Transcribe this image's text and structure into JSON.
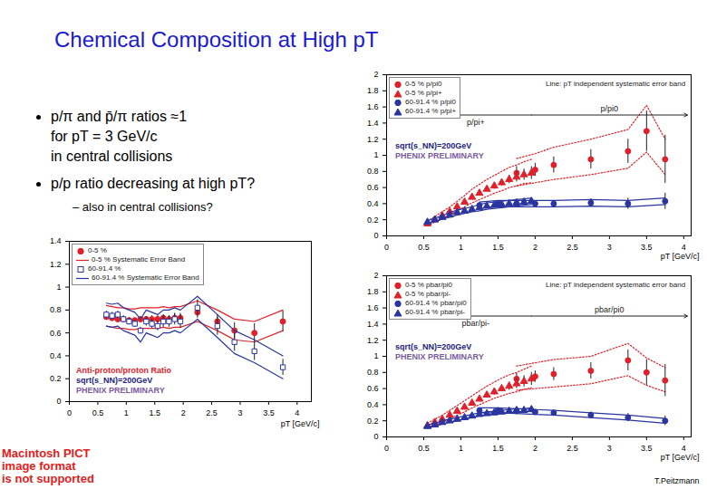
{
  "slide": {
    "title": "Chemical Composition at High pT",
    "bullets": [
      {
        "lines": [
          "p/π and p̄/π ratios ≈1",
          "for pT = 3 GeV/c",
          "in central collisions"
        ]
      },
      {
        "lines": [
          "p/p ratio decreasing at high pT?"
        ],
        "sub": [
          "– also in central collisions?"
        ]
      }
    ],
    "footer_left": [
      "Macintosh PICT",
      "image format",
      "is not supported"
    ],
    "credit": "T.Peitzmann"
  },
  "chart_data": [
    {
      "type": "scatter",
      "x_label": "pT [GeV/c]",
      "xlim": [
        0,
        4.25
      ],
      "xticks": [
        0,
        0.5,
        1,
        1.5,
        2,
        2.5,
        3,
        3.5,
        4
      ],
      "ylim": [
        0,
        1.4
      ],
      "yticks": [
        0,
        0.2,
        0.4,
        0.6,
        0.8,
        1,
        1.2,
        1.4
      ],
      "legend": "top-left",
      "annotations": [
        {
          "text": "Anti-proton/proton Ratio",
          "color": "#e0202a"
        },
        {
          "text": "sqrt(s_NN)=200GeV",
          "color": "#1a237e"
        },
        {
          "text": "PHENIX PRELIMINARY",
          "color": "#7a5aa0"
        }
      ],
      "series": [
        {
          "name": "0-5 %",
          "color": "#e0202a",
          "marker": "circle",
          "band_name": "0-5 % Systematic Error Band",
          "line_style": "solid",
          "x": [
            0.65,
            0.75,
            0.85,
            0.95,
            1.05,
            1.15,
            1.25,
            1.35,
            1.45,
            1.55,
            1.65,
            1.75,
            1.85,
            1.95,
            2.25,
            2.6,
            2.9,
            3.25,
            3.75
          ],
          "values": [
            0.74,
            0.73,
            0.72,
            0.72,
            0.71,
            0.71,
            0.72,
            0.72,
            0.72,
            0.72,
            0.73,
            0.72,
            0.73,
            0.73,
            0.78,
            0.7,
            0.62,
            0.6,
            0.7
          ],
          "errors": [
            0.02,
            0.02,
            0.02,
            0.02,
            0.02,
            0.02,
            0.02,
            0.02,
            0.03,
            0.03,
            0.03,
            0.03,
            0.04,
            0.04,
            0.05,
            0.06,
            0.07,
            0.08,
            0.09
          ],
          "band_low": [
            0.66,
            0.65,
            0.64,
            0.64,
            0.63,
            0.63,
            0.64,
            0.64,
            0.64,
            0.64,
            0.65,
            0.64,
            0.65,
            0.65,
            0.7,
            0.62,
            0.54,
            0.52,
            0.62
          ],
          "band_high": [
            0.84,
            0.83,
            0.82,
            0.82,
            0.81,
            0.81,
            0.82,
            0.82,
            0.82,
            0.82,
            0.83,
            0.82,
            0.83,
            0.83,
            0.88,
            0.8,
            0.72,
            0.7,
            0.8
          ]
        },
        {
          "name": "60-91.4 %",
          "color": "#2a35a0",
          "marker": "square-open",
          "band_name": "60-91.4 % Systematic Error Band",
          "line_style": "solid",
          "x": [
            0.65,
            0.75,
            0.85,
            0.95,
            1.05,
            1.15,
            1.25,
            1.35,
            1.45,
            1.55,
            1.65,
            1.75,
            1.85,
            1.95,
            2.25,
            2.6,
            2.9,
            3.25,
            3.75
          ],
          "values": [
            0.76,
            0.75,
            0.76,
            0.72,
            0.7,
            0.68,
            0.62,
            0.7,
            0.68,
            0.66,
            0.7,
            0.7,
            0.72,
            0.7,
            0.82,
            0.66,
            0.52,
            0.44,
            0.3
          ],
          "errors": [
            0.03,
            0.03,
            0.03,
            0.03,
            0.03,
            0.03,
            0.03,
            0.04,
            0.04,
            0.04,
            0.05,
            0.05,
            0.05,
            0.06,
            0.07,
            0.08,
            0.08,
            0.08,
            0.07
          ],
          "band_low": [
            0.66,
            0.65,
            0.66,
            0.62,
            0.6,
            0.58,
            0.52,
            0.6,
            0.58,
            0.56,
            0.6,
            0.6,
            0.62,
            0.6,
            0.72,
            0.56,
            0.42,
            0.34,
            0.2
          ],
          "band_high": [
            0.86,
            0.85,
            0.86,
            0.82,
            0.8,
            0.78,
            0.72,
            0.8,
            0.78,
            0.76,
            0.8,
            0.8,
            0.82,
            0.8,
            0.92,
            0.76,
            0.62,
            0.54,
            0.4
          ]
        }
      ]
    },
    {
      "type": "scatter",
      "x_label": "pT [GeV/c]",
      "xlim": [
        0,
        4.1
      ],
      "xticks": [
        0,
        0.5,
        1,
        1.5,
        2,
        2.5,
        3,
        3.5,
        4
      ],
      "ylim": [
        0,
        2
      ],
      "yticks": [
        0,
        0.2,
        0.4,
        0.6,
        0.8,
        1,
        1.2,
        1.4,
        1.6,
        1.8,
        2
      ],
      "legend": "top-left",
      "note": "Line: pT independent systematic error band",
      "annotations": [
        {
          "text": "sqrt(s_NN)=200GeV",
          "color": "#1a237e"
        },
        {
          "text": "PHENIX PRELIMINARY",
          "color": "#7a5aa0"
        }
      ],
      "range_arrows": [
        {
          "label": "p/pi+",
          "from": 1.95,
          "to": 0.45,
          "y": 1.5,
          "label_side": "below"
        },
        {
          "label": "p/pi0",
          "from": 1.95,
          "to": 4.05,
          "y": 1.5,
          "label_side": "above"
        }
      ],
      "series": [
        {
          "name": "0-5 % p/pi0",
          "color": "#e0202a",
          "marker": "circle",
          "line_style": "dotted",
          "x": [
            1.75,
            2.0,
            2.25,
            2.75,
            3.25,
            3.5,
            3.75
          ],
          "values": [
            0.78,
            0.82,
            0.88,
            0.95,
            1.05,
            1.3,
            0.95
          ],
          "errors": [
            0.08,
            0.08,
            0.1,
            0.12,
            0.15,
            0.25,
            0.3
          ],
          "band_low": [
            0.62,
            0.66,
            0.7,
            0.76,
            0.84,
            1.04,
            0.76
          ],
          "band_high": [
            0.96,
            1.02,
            1.1,
            1.2,
            1.32,
            1.62,
            1.2
          ]
        },
        {
          "name": "0-5 % p/pi+",
          "color": "#e0202a",
          "marker": "triangle",
          "line_style": "dotted",
          "x": [
            0.55,
            0.65,
            0.75,
            0.85,
            0.95,
            1.05,
            1.15,
            1.25,
            1.35,
            1.45,
            1.55,
            1.65,
            1.75,
            1.85,
            1.95
          ],
          "values": [
            0.15,
            0.2,
            0.25,
            0.3,
            0.36,
            0.42,
            0.48,
            0.53,
            0.58,
            0.62,
            0.66,
            0.7,
            0.73,
            0.76,
            0.78
          ],
          "errors": [
            0.01,
            0.01,
            0.01,
            0.01,
            0.02,
            0.02,
            0.02,
            0.03,
            0.03,
            0.04,
            0.04,
            0.05,
            0.06,
            0.07,
            0.08
          ],
          "band_low": [
            0.13,
            0.17,
            0.21,
            0.26,
            0.31,
            0.36,
            0.41,
            0.45,
            0.49,
            0.53,
            0.56,
            0.6,
            0.62,
            0.65,
            0.66
          ],
          "band_high": [
            0.18,
            0.24,
            0.3,
            0.36,
            0.43,
            0.5,
            0.58,
            0.64,
            0.7,
            0.75,
            0.8,
            0.85,
            0.88,
            0.92,
            0.95
          ]
        },
        {
          "name": "60-91.4 % p/pi0",
          "color": "#2a35a0",
          "marker": "circle",
          "line_style": "solid",
          "x": [
            1.25,
            1.5,
            1.75,
            2.0,
            2.25,
            2.75,
            3.25,
            3.75
          ],
          "values": [
            0.38,
            0.4,
            0.4,
            0.4,
            0.4,
            0.41,
            0.4,
            0.43
          ],
          "errors": [
            0.02,
            0.02,
            0.03,
            0.03,
            0.04,
            0.05,
            0.07,
            0.1
          ],
          "band_low": [
            0.34,
            0.36,
            0.36,
            0.36,
            0.36,
            0.37,
            0.36,
            0.39
          ],
          "band_high": [
            0.42,
            0.44,
            0.44,
            0.44,
            0.44,
            0.45,
            0.44,
            0.47
          ]
        },
        {
          "name": "60-91.4 % p/pi+",
          "color": "#2a35a0",
          "marker": "triangle",
          "line_style": "solid",
          "x": [
            0.55,
            0.65,
            0.75,
            0.85,
            0.95,
            1.05,
            1.15,
            1.25,
            1.35,
            1.45,
            1.55,
            1.65,
            1.75,
            1.85,
            1.95
          ],
          "values": [
            0.17,
            0.2,
            0.23,
            0.26,
            0.29,
            0.31,
            0.33,
            0.35,
            0.37,
            0.38,
            0.39,
            0.4,
            0.41,
            0.42,
            0.43
          ],
          "errors": [
            0.01,
            0.01,
            0.01,
            0.01,
            0.01,
            0.01,
            0.02,
            0.02,
            0.02,
            0.02,
            0.02,
            0.03,
            0.03,
            0.03,
            0.04
          ],
          "band_low": [
            0.15,
            0.18,
            0.21,
            0.23,
            0.26,
            0.28,
            0.3,
            0.31,
            0.33,
            0.34,
            0.35,
            0.36,
            0.37,
            0.38,
            0.39
          ],
          "band_high": [
            0.19,
            0.22,
            0.25,
            0.29,
            0.32,
            0.34,
            0.36,
            0.39,
            0.41,
            0.42,
            0.43,
            0.44,
            0.45,
            0.46,
            0.47
          ]
        }
      ]
    },
    {
      "type": "scatter",
      "x_label": "pT [GeV/c]",
      "xlim": [
        0,
        4.1
      ],
      "xticks": [
        0,
        0.5,
        1,
        1.5,
        2,
        2.5,
        3,
        3.5,
        4
      ],
      "ylim": [
        0,
        2
      ],
      "yticks": [
        0,
        0.2,
        0.4,
        0.6,
        0.8,
        1,
        1.2,
        1.4,
        1.6,
        1.8,
        2
      ],
      "legend": "top-left",
      "note": "Line: pT independent systematic error band",
      "annotations": [
        {
          "text": "sqrt(s_NN)=200GeV",
          "color": "#1a237e"
        },
        {
          "text": "PHENIX PRELIMINARY",
          "color": "#7a5aa0"
        }
      ],
      "range_arrows": [
        {
          "label": "pbar/pi-",
          "from": 1.95,
          "to": 0.45,
          "y": 1.5,
          "label_side": "below"
        },
        {
          "label": "pbar/pi0",
          "from": 1.95,
          "to": 4.05,
          "y": 1.5,
          "label_side": "above"
        }
      ],
      "series": [
        {
          "name": "0-5 % pbar/pi0",
          "color": "#e0202a",
          "marker": "circle",
          "line_style": "dotted",
          "x": [
            1.75,
            2.0,
            2.25,
            2.75,
            3.25,
            3.5,
            3.75
          ],
          "values": [
            0.72,
            0.75,
            0.78,
            0.82,
            0.95,
            0.8,
            0.7
          ],
          "errors": [
            0.07,
            0.07,
            0.08,
            0.1,
            0.13,
            0.16,
            0.2
          ],
          "band_low": [
            0.58,
            0.6,
            0.62,
            0.66,
            0.76,
            0.64,
            0.56
          ],
          "band_high": [
            0.88,
            0.92,
            0.96,
            1.0,
            1.16,
            0.98,
            0.86
          ]
        },
        {
          "name": "0-5 % pbar/pi-",
          "color": "#e0202a",
          "marker": "triangle",
          "line_style": "dotted",
          "x": [
            0.55,
            0.65,
            0.75,
            0.85,
            0.95,
            1.05,
            1.15,
            1.25,
            1.35,
            1.45,
            1.55,
            1.65,
            1.75,
            1.85,
            1.95
          ],
          "values": [
            0.14,
            0.18,
            0.22,
            0.27,
            0.32,
            0.37,
            0.42,
            0.47,
            0.52,
            0.56,
            0.6,
            0.63,
            0.66,
            0.69,
            0.72
          ],
          "errors": [
            0.01,
            0.01,
            0.01,
            0.01,
            0.02,
            0.02,
            0.02,
            0.03,
            0.03,
            0.04,
            0.04,
            0.05,
            0.06,
            0.07,
            0.08
          ],
          "band_low": [
            0.12,
            0.15,
            0.19,
            0.23,
            0.27,
            0.31,
            0.36,
            0.4,
            0.44,
            0.48,
            0.51,
            0.54,
            0.56,
            0.59,
            0.61
          ],
          "band_high": [
            0.17,
            0.22,
            0.27,
            0.33,
            0.39,
            0.45,
            0.51,
            0.57,
            0.63,
            0.68,
            0.73,
            0.77,
            0.8,
            0.84,
            0.88
          ]
        },
        {
          "name": "60-91.4 % pbar/pi0",
          "color": "#2a35a0",
          "marker": "circle",
          "line_style": "solid",
          "x": [
            1.25,
            1.5,
            1.75,
            2.0,
            2.25,
            2.75,
            3.25,
            3.75
          ],
          "values": [
            0.33,
            0.33,
            0.32,
            0.31,
            0.3,
            0.27,
            0.24,
            0.2
          ],
          "errors": [
            0.02,
            0.02,
            0.03,
            0.03,
            0.03,
            0.04,
            0.05,
            0.06
          ],
          "band_low": [
            0.3,
            0.3,
            0.29,
            0.28,
            0.27,
            0.24,
            0.21,
            0.17
          ],
          "band_high": [
            0.36,
            0.36,
            0.35,
            0.34,
            0.33,
            0.3,
            0.27,
            0.23
          ]
        },
        {
          "name": "60-91.4 % pbar/pi-",
          "color": "#2a35a0",
          "marker": "triangle",
          "line_style": "solid",
          "x": [
            0.55,
            0.65,
            0.75,
            0.85,
            0.95,
            1.05,
            1.15,
            1.25,
            1.35,
            1.45,
            1.55,
            1.65,
            1.75,
            1.85,
            1.95
          ],
          "values": [
            0.13,
            0.15,
            0.18,
            0.2,
            0.22,
            0.24,
            0.26,
            0.28,
            0.29,
            0.3,
            0.31,
            0.32,
            0.33,
            0.33,
            0.34
          ],
          "errors": [
            0.01,
            0.01,
            0.01,
            0.01,
            0.01,
            0.01,
            0.02,
            0.02,
            0.02,
            0.02,
            0.02,
            0.03,
            0.03,
            0.03,
            0.04
          ],
          "band_low": [
            0.11,
            0.13,
            0.16,
            0.18,
            0.2,
            0.22,
            0.24,
            0.26,
            0.27,
            0.28,
            0.29,
            0.3,
            0.31,
            0.31,
            0.32
          ],
          "band_high": [
            0.15,
            0.17,
            0.2,
            0.22,
            0.24,
            0.26,
            0.28,
            0.3,
            0.31,
            0.32,
            0.33,
            0.34,
            0.35,
            0.35,
            0.36
          ]
        }
      ]
    }
  ]
}
